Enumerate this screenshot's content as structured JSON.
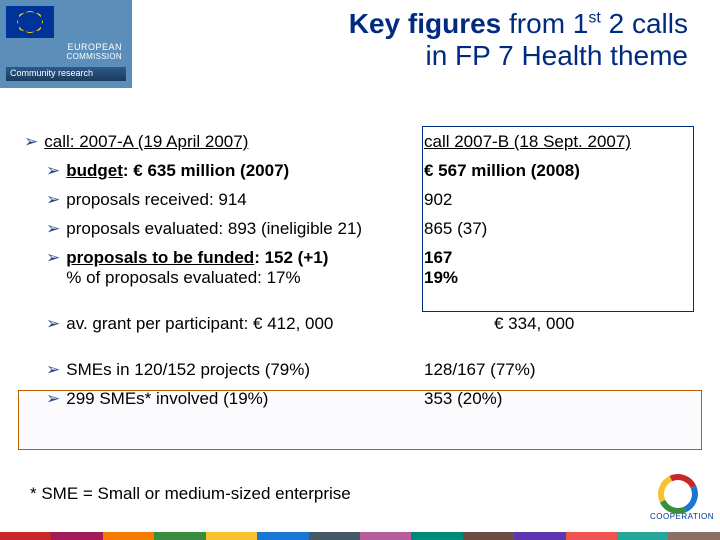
{
  "logo": {
    "text1": "EUROPEAN",
    "text2": "COMMISSION",
    "bar": "Community research"
  },
  "title": {
    "key_figures": "Key figures",
    "from": " from 1",
    "sup": "st",
    "rest1": " 2 calls",
    "line2": "in FP 7 Health theme"
  },
  "rows": [
    {
      "left": "call:  2007-A (19 April 2007)",
      "right": "call 2007-B (18 Sept. 2007)",
      "leftUnderline": true,
      "rightUnderline": true,
      "indent": false
    },
    {
      "leftPrefix": "budget",
      "leftRest": ":  € 635 million (2007)",
      "right": "€ 567 million (2008)",
      "leftBold": true,
      "rightBold": true,
      "indent": true
    },
    {
      "left": "proposals received: 914",
      "right": "902",
      "indent": true
    },
    {
      "left": "proposals evaluated: 893 (ineligible 21)",
      "right": "865 (37)",
      "indent": true
    },
    {
      "leftPrefix": "proposals to be funded",
      "leftRest": ": 152  (+1)",
      "left2": "% of proposals evaluated: 17%",
      "right": "167",
      "right2": "19%",
      "leftBold": true,
      "rightBold": true,
      "indent": true
    },
    {
      "left": "av. grant per participant: € 412, 000",
      "right": "€ 334, 000",
      "rightPad": true,
      "indent": true
    },
    {
      "left": "SMEs in 120/152 projects (79%)",
      "right": "128/167 (77%)",
      "indent": true
    },
    {
      "left": "299 SMEs* involved (19%)",
      "right": "353 (20%)",
      "indent": true
    }
  ],
  "footnote": "* SME = Small or medium-sized enterprise",
  "fp7": "COOPERATION",
  "stripe_colors": [
    "#c62828",
    "#a11d5a",
    "#f57c00",
    "#388e3c",
    "#fbc02d",
    "#1976d2",
    "#455a64",
    "#b85c9e",
    "#00897b",
    "#6d4c41",
    "#5e35b1",
    "#ef5350",
    "#26a69a",
    "#8d6e63"
  ]
}
